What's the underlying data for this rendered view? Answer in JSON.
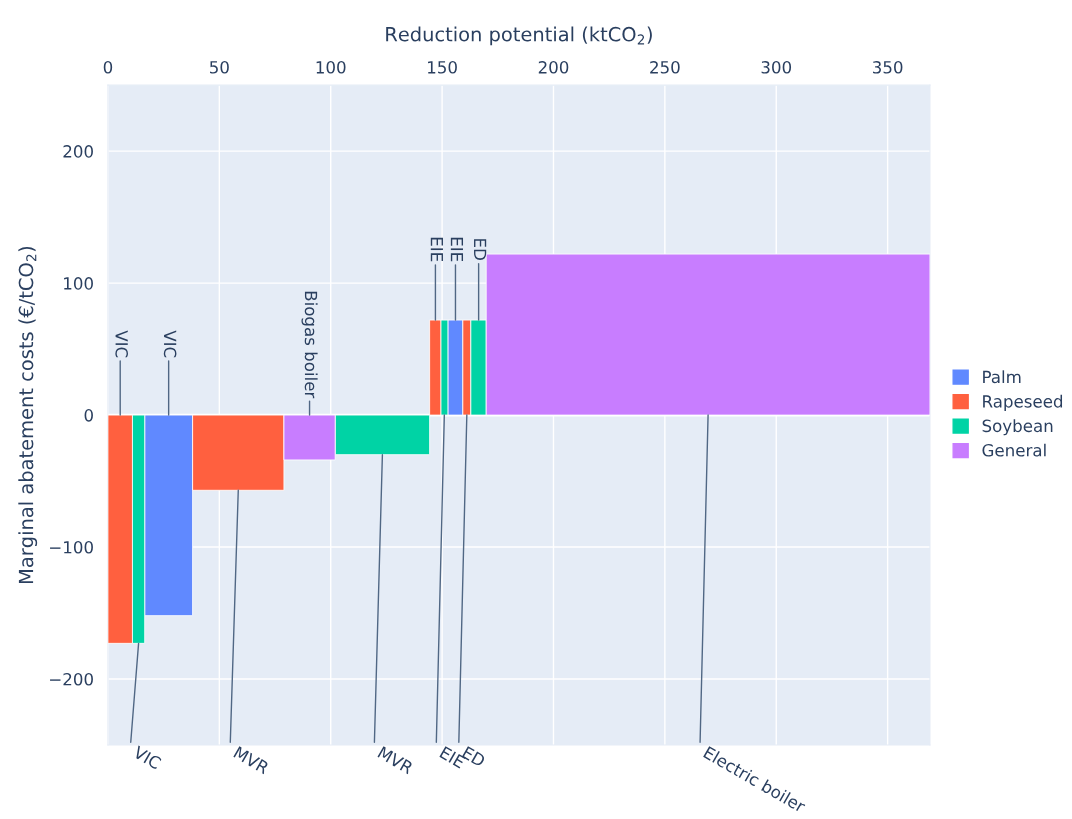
{
  "chart_data": {
    "type": "histogram",
    "xlabel": "Reduction potential (ktCO$_{2}$)",
    "ylabel": "Marginal abatement costs (€/tCO$_{2}$)",
    "bins": [
      0,
      11,
      16.5,
      38,
      79,
      102,
      144.4,
      149.5,
      152.6,
      159.3,
      162.9,
      169.8,
      369
    ],
    "series": [
      {
        "name": "Palm",
        "color": "#6089ff",
        "values": [
          null,
          null,
          -152,
          null,
          null,
          null,
          null,
          null,
          72,
          null,
          null,
          null
        ]
      },
      {
        "name": "Rapeseed",
        "color": "#ff603f",
        "values": [
          -173,
          null,
          null,
          -57,
          null,
          null,
          72,
          null,
          null,
          72,
          null,
          null
        ]
      },
      {
        "name": "Soybean",
        "color": "#00d3a5",
        "values": [
          null,
          -173,
          null,
          null,
          null,
          -30,
          null,
          72,
          null,
          null,
          72,
          null
        ]
      },
      {
        "name": "General",
        "color": "#c87dff",
        "values": [
          null,
          null,
          null,
          null,
          -34,
          null,
          null,
          null,
          null,
          null,
          null,
          122
        ]
      }
    ],
    "xlim": [
      0,
      369
    ],
    "xticks": [
      0,
      50,
      100,
      150,
      200,
      250,
      300,
      350
    ],
    "ylim": [
      -250,
      250
    ],
    "yticks": [
      -200,
      -100,
      0,
      100,
      200
    ],
    "grid": true,
    "legend": "right",
    "annotations": [
      {
        "text": "VIC",
        "x": 5.5,
        "y": 0
      },
      {
        "text": "VIC",
        "x": 13.75,
        "y": -173
      },
      {
        "text": "VIC",
        "x": 27.25,
        "y": 0
      },
      {
        "text": "MVR",
        "x": 58.5,
        "y": -57
      },
      {
        "text": "Biogas boiler",
        "x": 90.5,
        "y": 0
      },
      {
        "text": "MVR",
        "x": 123.2,
        "y": -30
      },
      {
        "text": "EIE",
        "x": 147,
        "y": 72
      },
      {
        "text": "EIE",
        "x": 151,
        "y": 0
      },
      {
        "text": "EIE",
        "x": 156,
        "y": 72
      },
      {
        "text": "ED",
        "x": 161.1,
        "y": 0
      },
      {
        "text": "ED",
        "x": 166.4,
        "y": 72
      },
      {
        "text": "Electric boiler",
        "x": 269.4,
        "y": 0
      }
    ]
  }
}
